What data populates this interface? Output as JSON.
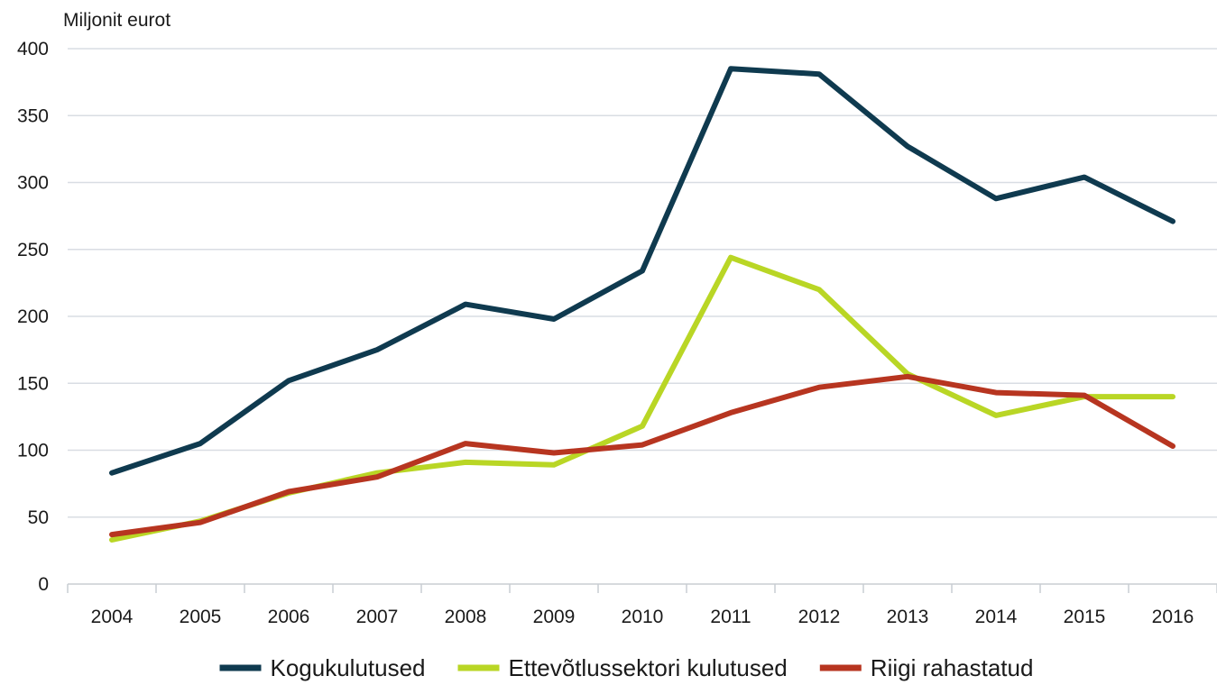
{
  "chart_data": {
    "type": "line",
    "title": "",
    "ylabel": "Miljonit eurot",
    "xlabel": "",
    "ylim": [
      0,
      400
    ],
    "yticks": [
      0,
      50,
      100,
      150,
      200,
      250,
      300,
      350,
      400
    ],
    "categories": [
      "2004",
      "2005",
      "2006",
      "2007",
      "2008",
      "2009",
      "2010",
      "2011",
      "2012",
      "2013",
      "2014",
      "2015",
      "2016"
    ],
    "grid": true,
    "legend_position": "bottom",
    "series": [
      {
        "name": "Kogukulutused",
        "color": "#0f3a4f",
        "values": [
          83,
          105,
          152,
          175,
          209,
          198,
          234,
          385,
          381,
          327,
          288,
          304,
          271
        ]
      },
      {
        "name": "Ettevõtlussektori kulutused",
        "color": "#b9d625",
        "values": [
          33,
          47,
          68,
          83,
          91,
          89,
          118,
          244,
          220,
          157,
          126,
          140,
          140
        ]
      },
      {
        "name": "Riigi rahastatud",
        "color": "#b73520",
        "values": [
          37,
          46,
          69,
          80,
          105,
          98,
          104,
          128,
          147,
          155,
          143,
          141,
          103
        ]
      }
    ]
  }
}
